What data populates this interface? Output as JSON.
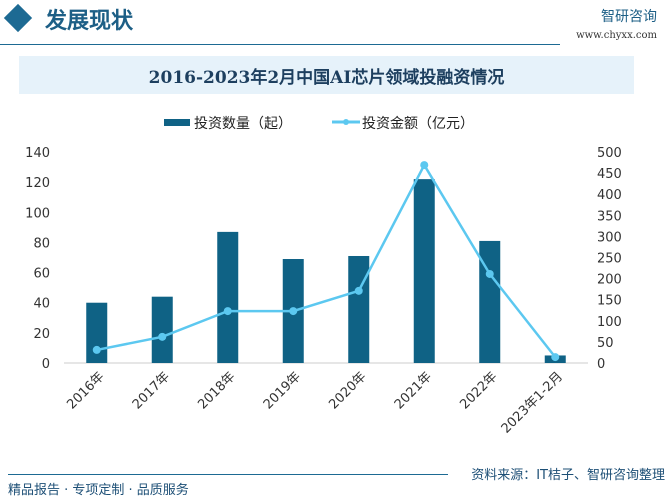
{
  "header": {
    "title": "发展现状",
    "logo_text": "智研咨询",
    "url": "www.chyxx.com"
  },
  "footer": {
    "slogan": "精品报告 · 专项定制 · 品质服务",
    "source": "资料来源：IT桔子、智研咨询整理"
  },
  "colors": {
    "bar": "#0f6285",
    "line": "#5cc8f0",
    "title_bg": "#e6f2fa"
  },
  "chart_data": {
    "type": "bar+line",
    "title": "2016-2023年2月中国AI芯片领域投融资情况",
    "categories": [
      "2016年",
      "2017年",
      "2018年",
      "2019年",
      "2020年",
      "2021年",
      "2022年",
      "2023年1-2月"
    ],
    "series": [
      {
        "name": "投资数量（起）",
        "type": "bar",
        "axis": "left",
        "values": [
          40,
          44,
          87,
          69,
          71,
          122,
          81,
          5
        ]
      },
      {
        "name": "投资金额（亿元）",
        "type": "line",
        "axis": "right",
        "values": [
          31,
          62,
          123,
          123,
          171,
          469,
          211,
          14
        ]
      }
    ],
    "y_left": {
      "range": [
        0,
        140
      ],
      "ticks": [
        0,
        20,
        40,
        60,
        80,
        100,
        120,
        140
      ]
    },
    "y_right": {
      "range": [
        0,
        500
      ],
      "ticks": [
        0,
        50,
        100,
        150,
        200,
        250,
        300,
        350,
        400,
        450,
        500
      ]
    },
    "legend": "top-center",
    "grid": false
  }
}
